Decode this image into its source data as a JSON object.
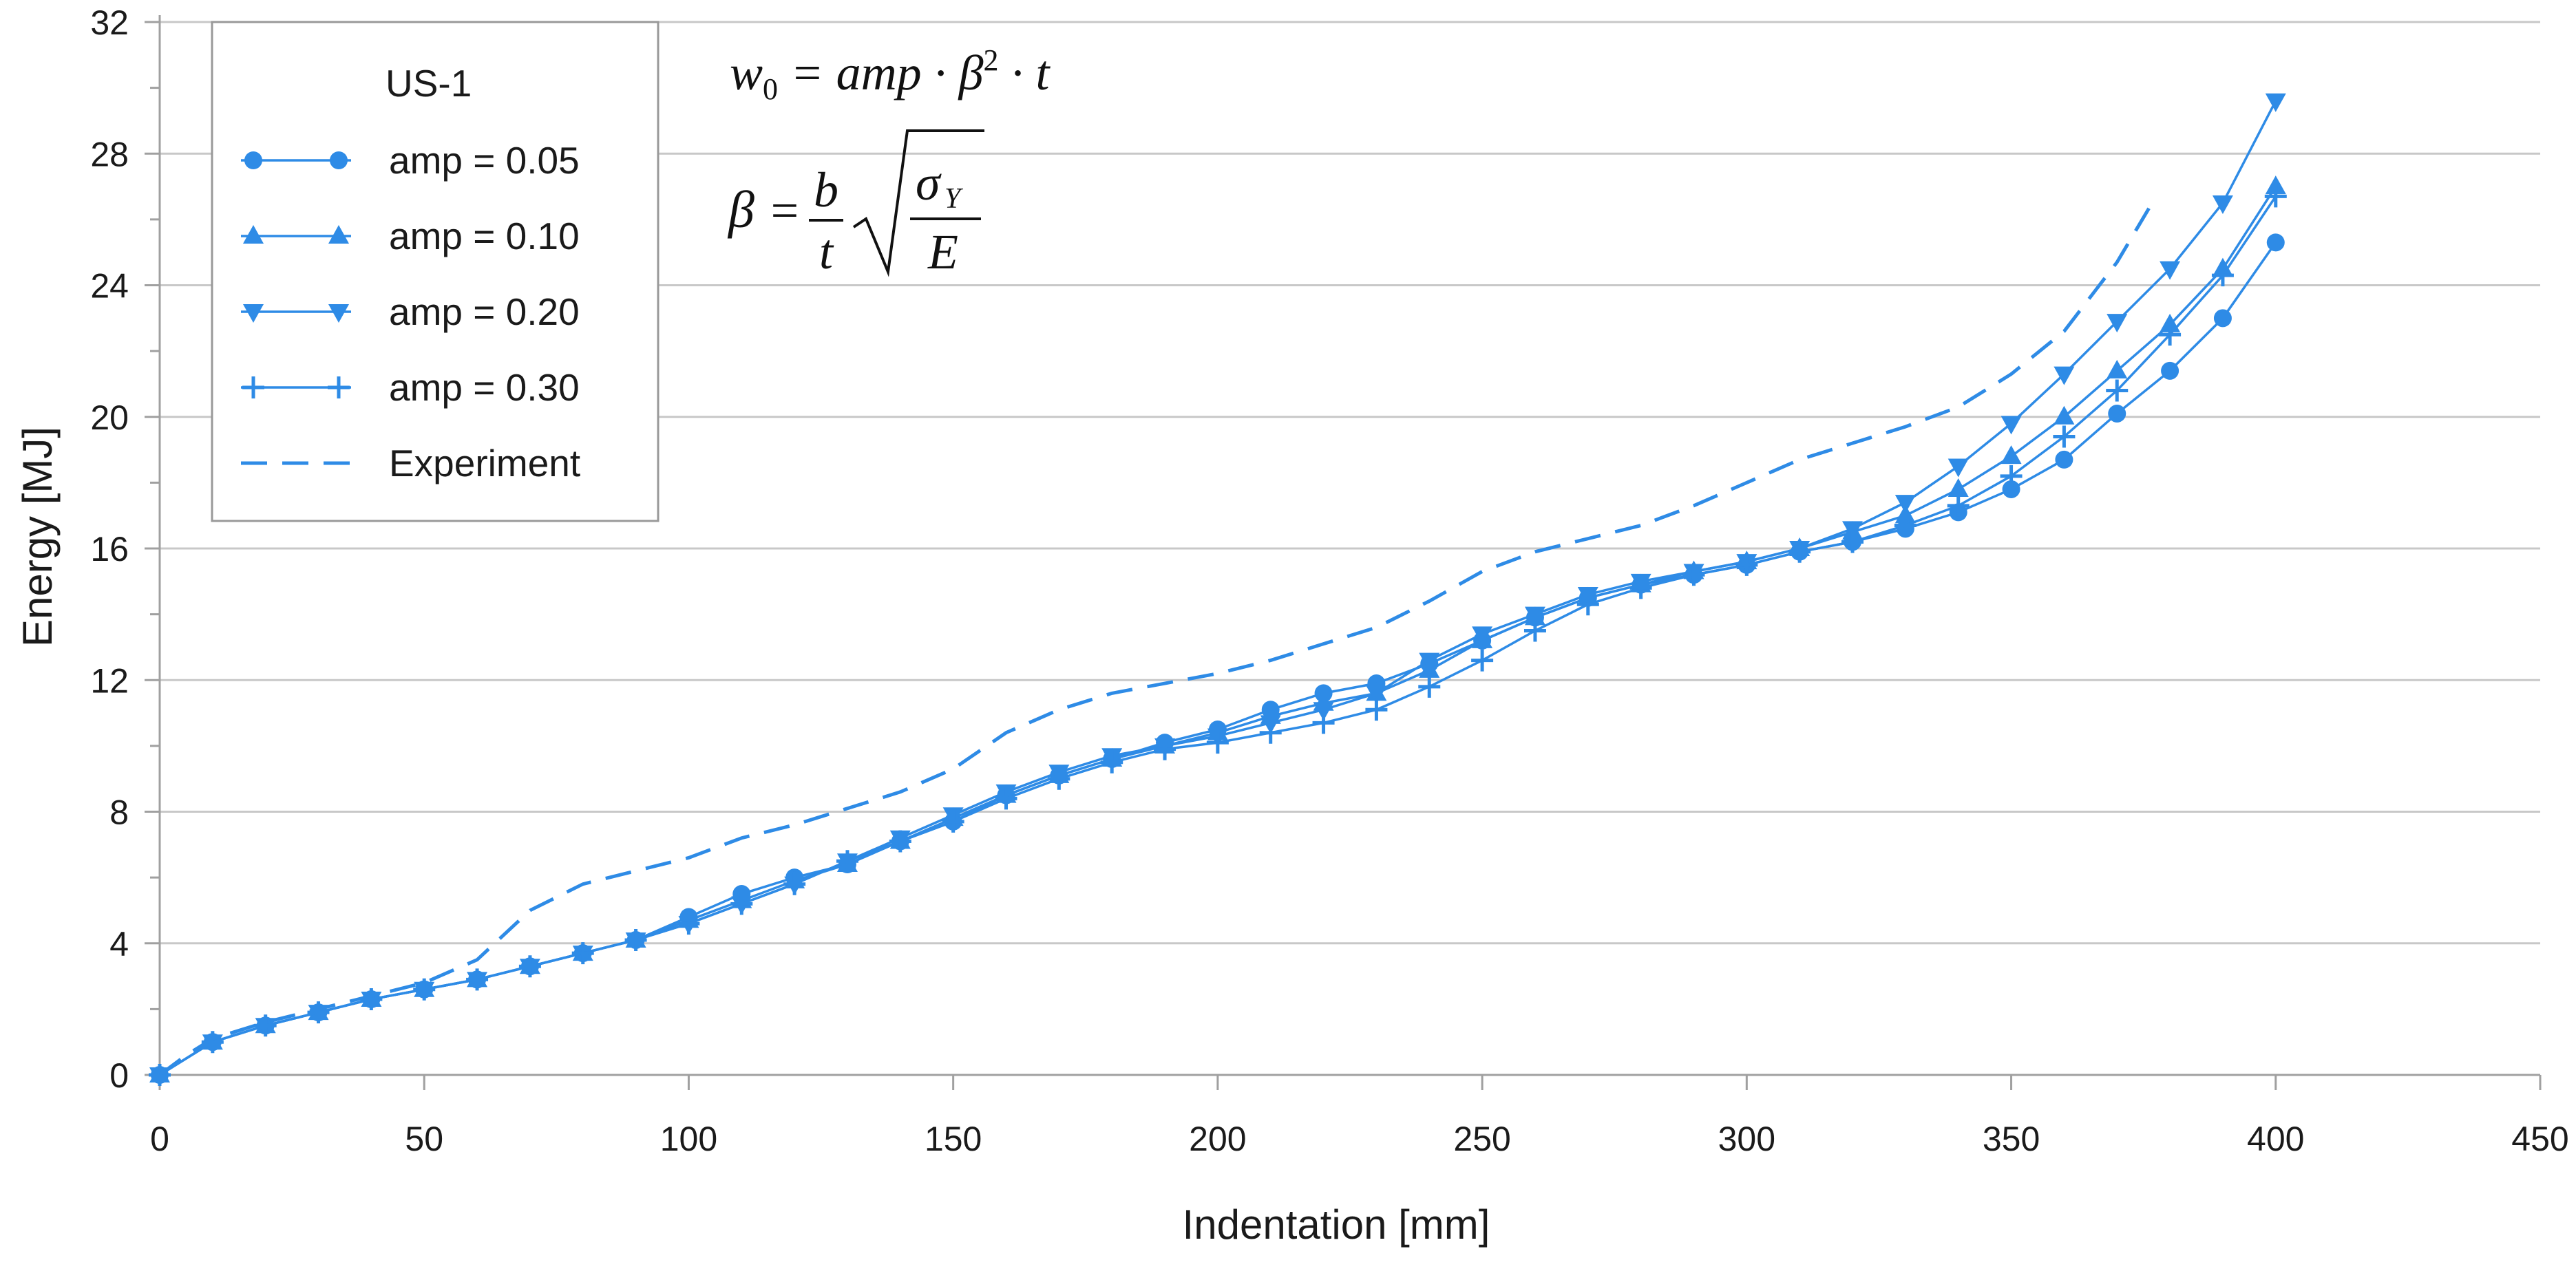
{
  "chart_data": {
    "type": "line",
    "title": "",
    "xlabel": "Indentation [mm]",
    "ylabel": "Energy [MJ]",
    "xlim": [
      0,
      450
    ],
    "ylim": [
      0,
      32
    ],
    "x_ticks": [
      0,
      50,
      100,
      150,
      200,
      250,
      300,
      350,
      400,
      450
    ],
    "y_ticks": [
      0,
      4,
      8,
      12,
      16,
      20,
      24,
      28,
      32
    ],
    "grid": "horizontal",
    "legend": {
      "title": "US-1",
      "position": "top-left",
      "entries": [
        "amp = 0.05",
        "amp = 0.10",
        "amp = 0.20",
        "amp = 0.30",
        "Experiment"
      ]
    },
    "annotations": {
      "formula1": "w0 = amp · β² · t",
      "formula2": "β = (b/t) √(σY/E)"
    },
    "series": [
      {
        "name": "amp = 0.05",
        "marker": "circle",
        "color": "#2E8BE6",
        "x": [
          0,
          10,
          20,
          30,
          40,
          50,
          60,
          70,
          80,
          90,
          100,
          110,
          120,
          130,
          140,
          150,
          160,
          170,
          180,
          190,
          200,
          210,
          220,
          230,
          240,
          250,
          260,
          270,
          280,
          290,
          300,
          310,
          320,
          330,
          340,
          350,
          360,
          370,
          380,
          390,
          400
        ],
        "y": [
          0,
          1.0,
          1.5,
          1.9,
          2.3,
          2.6,
          2.9,
          3.3,
          3.7,
          4.1,
          4.8,
          5.5,
          6.0,
          6.4,
          7.1,
          7.7,
          8.5,
          9.1,
          9.6,
          10.1,
          10.5,
          11.1,
          11.6,
          11.9,
          12.5,
          13.2,
          13.9,
          14.5,
          14.9,
          15.2,
          15.5,
          15.9,
          16.2,
          16.6,
          17.1,
          17.8,
          18.7,
          20.1,
          21.4,
          23.0,
          25.3
        ]
      },
      {
        "name": "amp = 0.10",
        "marker": "triangle-up",
        "color": "#2E8BE6",
        "x": [
          0,
          10,
          20,
          30,
          40,
          50,
          60,
          70,
          80,
          90,
          100,
          110,
          120,
          130,
          140,
          150,
          160,
          170,
          180,
          190,
          200,
          210,
          220,
          230,
          240,
          250,
          260,
          270,
          280,
          290,
          300,
          310,
          320,
          330,
          340,
          350,
          360,
          370,
          380,
          390,
          400
        ],
        "y": [
          0,
          1.0,
          1.5,
          1.9,
          2.3,
          2.6,
          2.9,
          3.3,
          3.7,
          4.1,
          4.7,
          5.3,
          5.9,
          6.4,
          7.1,
          7.8,
          8.5,
          9.1,
          9.6,
          10.0,
          10.4,
          10.9,
          11.3,
          11.6,
          12.3,
          13.2,
          13.9,
          14.5,
          14.9,
          15.3,
          15.6,
          16.0,
          16.5,
          17.0,
          17.8,
          18.8,
          20.0,
          21.4,
          22.8,
          24.5,
          27.0
        ]
      },
      {
        "name": "amp = 0.20",
        "marker": "triangle-down",
        "color": "#2E8BE6",
        "x": [
          0,
          10,
          20,
          30,
          40,
          50,
          60,
          70,
          80,
          90,
          100,
          110,
          120,
          130,
          140,
          150,
          160,
          170,
          180,
          190,
          200,
          210,
          220,
          230,
          240,
          250,
          260,
          270,
          280,
          290,
          300,
          310,
          320,
          330,
          340,
          350,
          360,
          370,
          380,
          390,
          400
        ],
        "y": [
          0,
          1.0,
          1.5,
          1.9,
          2.3,
          2.6,
          2.9,
          3.3,
          3.7,
          4.1,
          4.6,
          5.2,
          5.8,
          6.5,
          7.2,
          7.9,
          8.6,
          9.2,
          9.7,
          10.0,
          10.3,
          10.7,
          11.1,
          11.6,
          12.6,
          13.4,
          14.0,
          14.6,
          15.0,
          15.3,
          15.6,
          16.0,
          16.6,
          17.4,
          18.5,
          19.8,
          21.3,
          22.9,
          24.5,
          26.5,
          29.6
        ]
      },
      {
        "name": "amp = 0.30",
        "marker": "plus",
        "color": "#2E8BE6",
        "x": [
          0,
          10,
          20,
          30,
          40,
          50,
          60,
          70,
          80,
          90,
          100,
          110,
          120,
          130,
          140,
          150,
          160,
          170,
          180,
          190,
          200,
          210,
          220,
          230,
          240,
          250,
          260,
          270,
          280,
          290,
          300,
          310,
          320,
          330,
          340,
          350,
          360,
          370,
          380,
          390,
          400
        ],
        "y": [
          0,
          1.0,
          1.5,
          1.9,
          2.3,
          2.6,
          2.9,
          3.3,
          3.7,
          4.1,
          4.6,
          5.2,
          5.8,
          6.5,
          7.1,
          7.7,
          8.4,
          9.0,
          9.5,
          9.9,
          10.1,
          10.4,
          10.7,
          11.1,
          11.8,
          12.6,
          13.5,
          14.3,
          14.8,
          15.2,
          15.5,
          15.9,
          16.2,
          16.7,
          17.3,
          18.2,
          19.4,
          20.8,
          22.5,
          24.3,
          26.7
        ]
      },
      {
        "name": "Experiment",
        "marker": "none",
        "color": "#2E8BE6",
        "x": [
          0,
          5,
          10,
          20,
          30,
          40,
          50,
          60,
          70,
          80,
          90,
          100,
          110,
          120,
          130,
          140,
          150,
          160,
          170,
          180,
          190,
          200,
          210,
          220,
          230,
          240,
          250,
          260,
          270,
          280,
          290,
          300,
          310,
          320,
          330,
          340,
          350,
          360,
          370,
          377
        ],
        "y": [
          0,
          0.6,
          1.1,
          1.6,
          2.0,
          2.4,
          2.8,
          3.5,
          5.0,
          5.8,
          6.2,
          6.6,
          7.2,
          7.6,
          8.1,
          8.6,
          9.3,
          10.4,
          11.1,
          11.6,
          11.9,
          12.2,
          12.6,
          13.1,
          13.6,
          14.4,
          15.3,
          15.9,
          16.3,
          16.7,
          17.3,
          18.0,
          18.7,
          19.2,
          19.7,
          20.3,
          21.3,
          22.6,
          24.7,
          26.6
        ]
      }
    ]
  }
}
